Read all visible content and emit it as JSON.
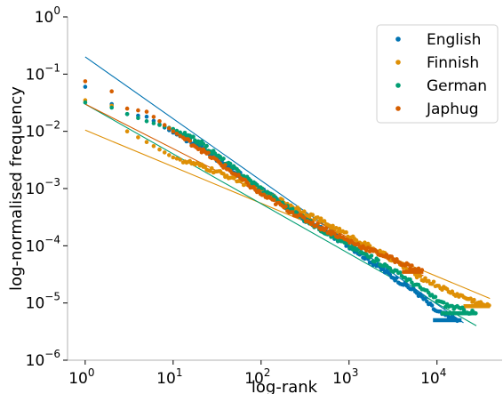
{
  "chart_data": {
    "type": "scatter",
    "xlabel": "log-rank",
    "ylabel": "log-normalised frequency",
    "xscale": "log",
    "yscale": "log",
    "xlim": [
      0.63,
      55000
    ],
    "ylim": [
      1e-06,
      1
    ],
    "x_ticks": [
      {
        "base": "10",
        "exp": "0",
        "value": 1
      },
      {
        "base": "10",
        "exp": "1",
        "value": 10
      },
      {
        "base": "10",
        "exp": "2",
        "value": 100
      },
      {
        "base": "10",
        "exp": "3",
        "value": 1000
      },
      {
        "base": "10",
        "exp": "4",
        "value": 10000
      }
    ],
    "y_ticks": [
      {
        "base": "10",
        "exp": "0",
        "value": 1
      },
      {
        "base": "10",
        "exp": "−1",
        "value": 0.1
      },
      {
        "base": "10",
        "exp": "−2",
        "value": 0.01
      },
      {
        "base": "10",
        "exp": "−3",
        "value": 0.001
      },
      {
        "base": "10",
        "exp": "−4",
        "value": 0.0001
      },
      {
        "base": "10",
        "exp": "−5",
        "value": 1e-05
      },
      {
        "base": "10",
        "exp": "−6",
        "value": 1e-06
      }
    ],
    "grid": false,
    "legend_position": "top-right",
    "series": [
      {
        "name": "English",
        "color": "#0173b2",
        "anchors": [
          [
            1,
            0.06
          ],
          [
            2,
            0.03
          ],
          [
            3,
            0.02
          ],
          [
            5,
            0.018
          ],
          [
            10,
            0.0095
          ],
          [
            20,
            0.0055
          ],
          [
            50,
            0.002
          ],
          [
            100,
            0.001
          ],
          [
            300,
            0.0003
          ],
          [
            1000,
            0.0001
          ],
          [
            3000,
            3e-05
          ],
          [
            6000,
            1.5e-05
          ],
          [
            10000,
            7e-06
          ],
          [
            17000,
            5e-06
          ]
        ],
        "fit": [
          [
            1,
            0.2
          ],
          [
            20000,
            4.5e-06
          ]
        ],
        "tail_run": {
          "x": [
            9000,
            19000
          ],
          "y": 5e-06
        }
      },
      {
        "name": "Finnish",
        "color": "#de8f05",
        "anchors": [
          [
            1,
            0.035
          ],
          [
            2,
            0.028
          ],
          [
            3,
            0.01
          ],
          [
            5,
            0.0065
          ],
          [
            10,
            0.0035
          ],
          [
            20,
            0.0025
          ],
          [
            50,
            0.0015
          ],
          [
            100,
            0.0009
          ],
          [
            300,
            0.0004
          ],
          [
            1000,
            0.00015
          ],
          [
            3000,
            6e-05
          ],
          [
            6000,
            3e-05
          ],
          [
            15000,
            1.5e-05
          ],
          [
            40000,
            8.5e-06
          ]
        ],
        "fit": [
          [
            1,
            0.0105
          ],
          [
            40000,
            1.2e-05
          ]
        ],
        "tail_run": {
          "x": [
            20000,
            40000
          ],
          "y": 8.8e-06
        }
      },
      {
        "name": "German",
        "color": "#029e73",
        "anchors": [
          [
            1,
            0.032
          ],
          [
            2,
            0.026
          ],
          [
            3,
            0.02
          ],
          [
            5,
            0.015
          ],
          [
            10,
            0.011
          ],
          [
            20,
            0.0065
          ],
          [
            50,
            0.0022
          ],
          [
            100,
            0.001
          ],
          [
            300,
            0.0003
          ],
          [
            1000,
            0.0001
          ],
          [
            3000,
            4e-05
          ],
          [
            6000,
            2e-05
          ],
          [
            12000,
            9.5e-06
          ],
          [
            28000,
            6.5e-06
          ]
        ],
        "fit": [
          [
            1,
            0.03
          ],
          [
            28000,
            4e-06
          ]
        ],
        "tail_run": {
          "x": [
            11000,
            28000
          ],
          "y": 6.6e-06
        }
      },
      {
        "name": "Japhug",
        "color": "#d55e00",
        "anchors": [
          [
            1,
            0.075
          ],
          [
            2,
            0.05
          ],
          [
            3,
            0.025
          ],
          [
            5,
            0.022
          ],
          [
            10,
            0.01
          ],
          [
            20,
            0.005
          ],
          [
            50,
            0.0018
          ],
          [
            100,
            0.0008
          ],
          [
            300,
            0.0003
          ],
          [
            1000,
            0.00012
          ],
          [
            3000,
            6e-05
          ],
          [
            7000,
            3.5e-05
          ]
        ],
        "fit": [
          [
            1,
            0.03
          ],
          [
            7000,
            3e-05
          ]
        ],
        "tail_run": {
          "x": [
            4000,
            7000
          ],
          "y": 3.5e-05
        }
      }
    ]
  }
}
